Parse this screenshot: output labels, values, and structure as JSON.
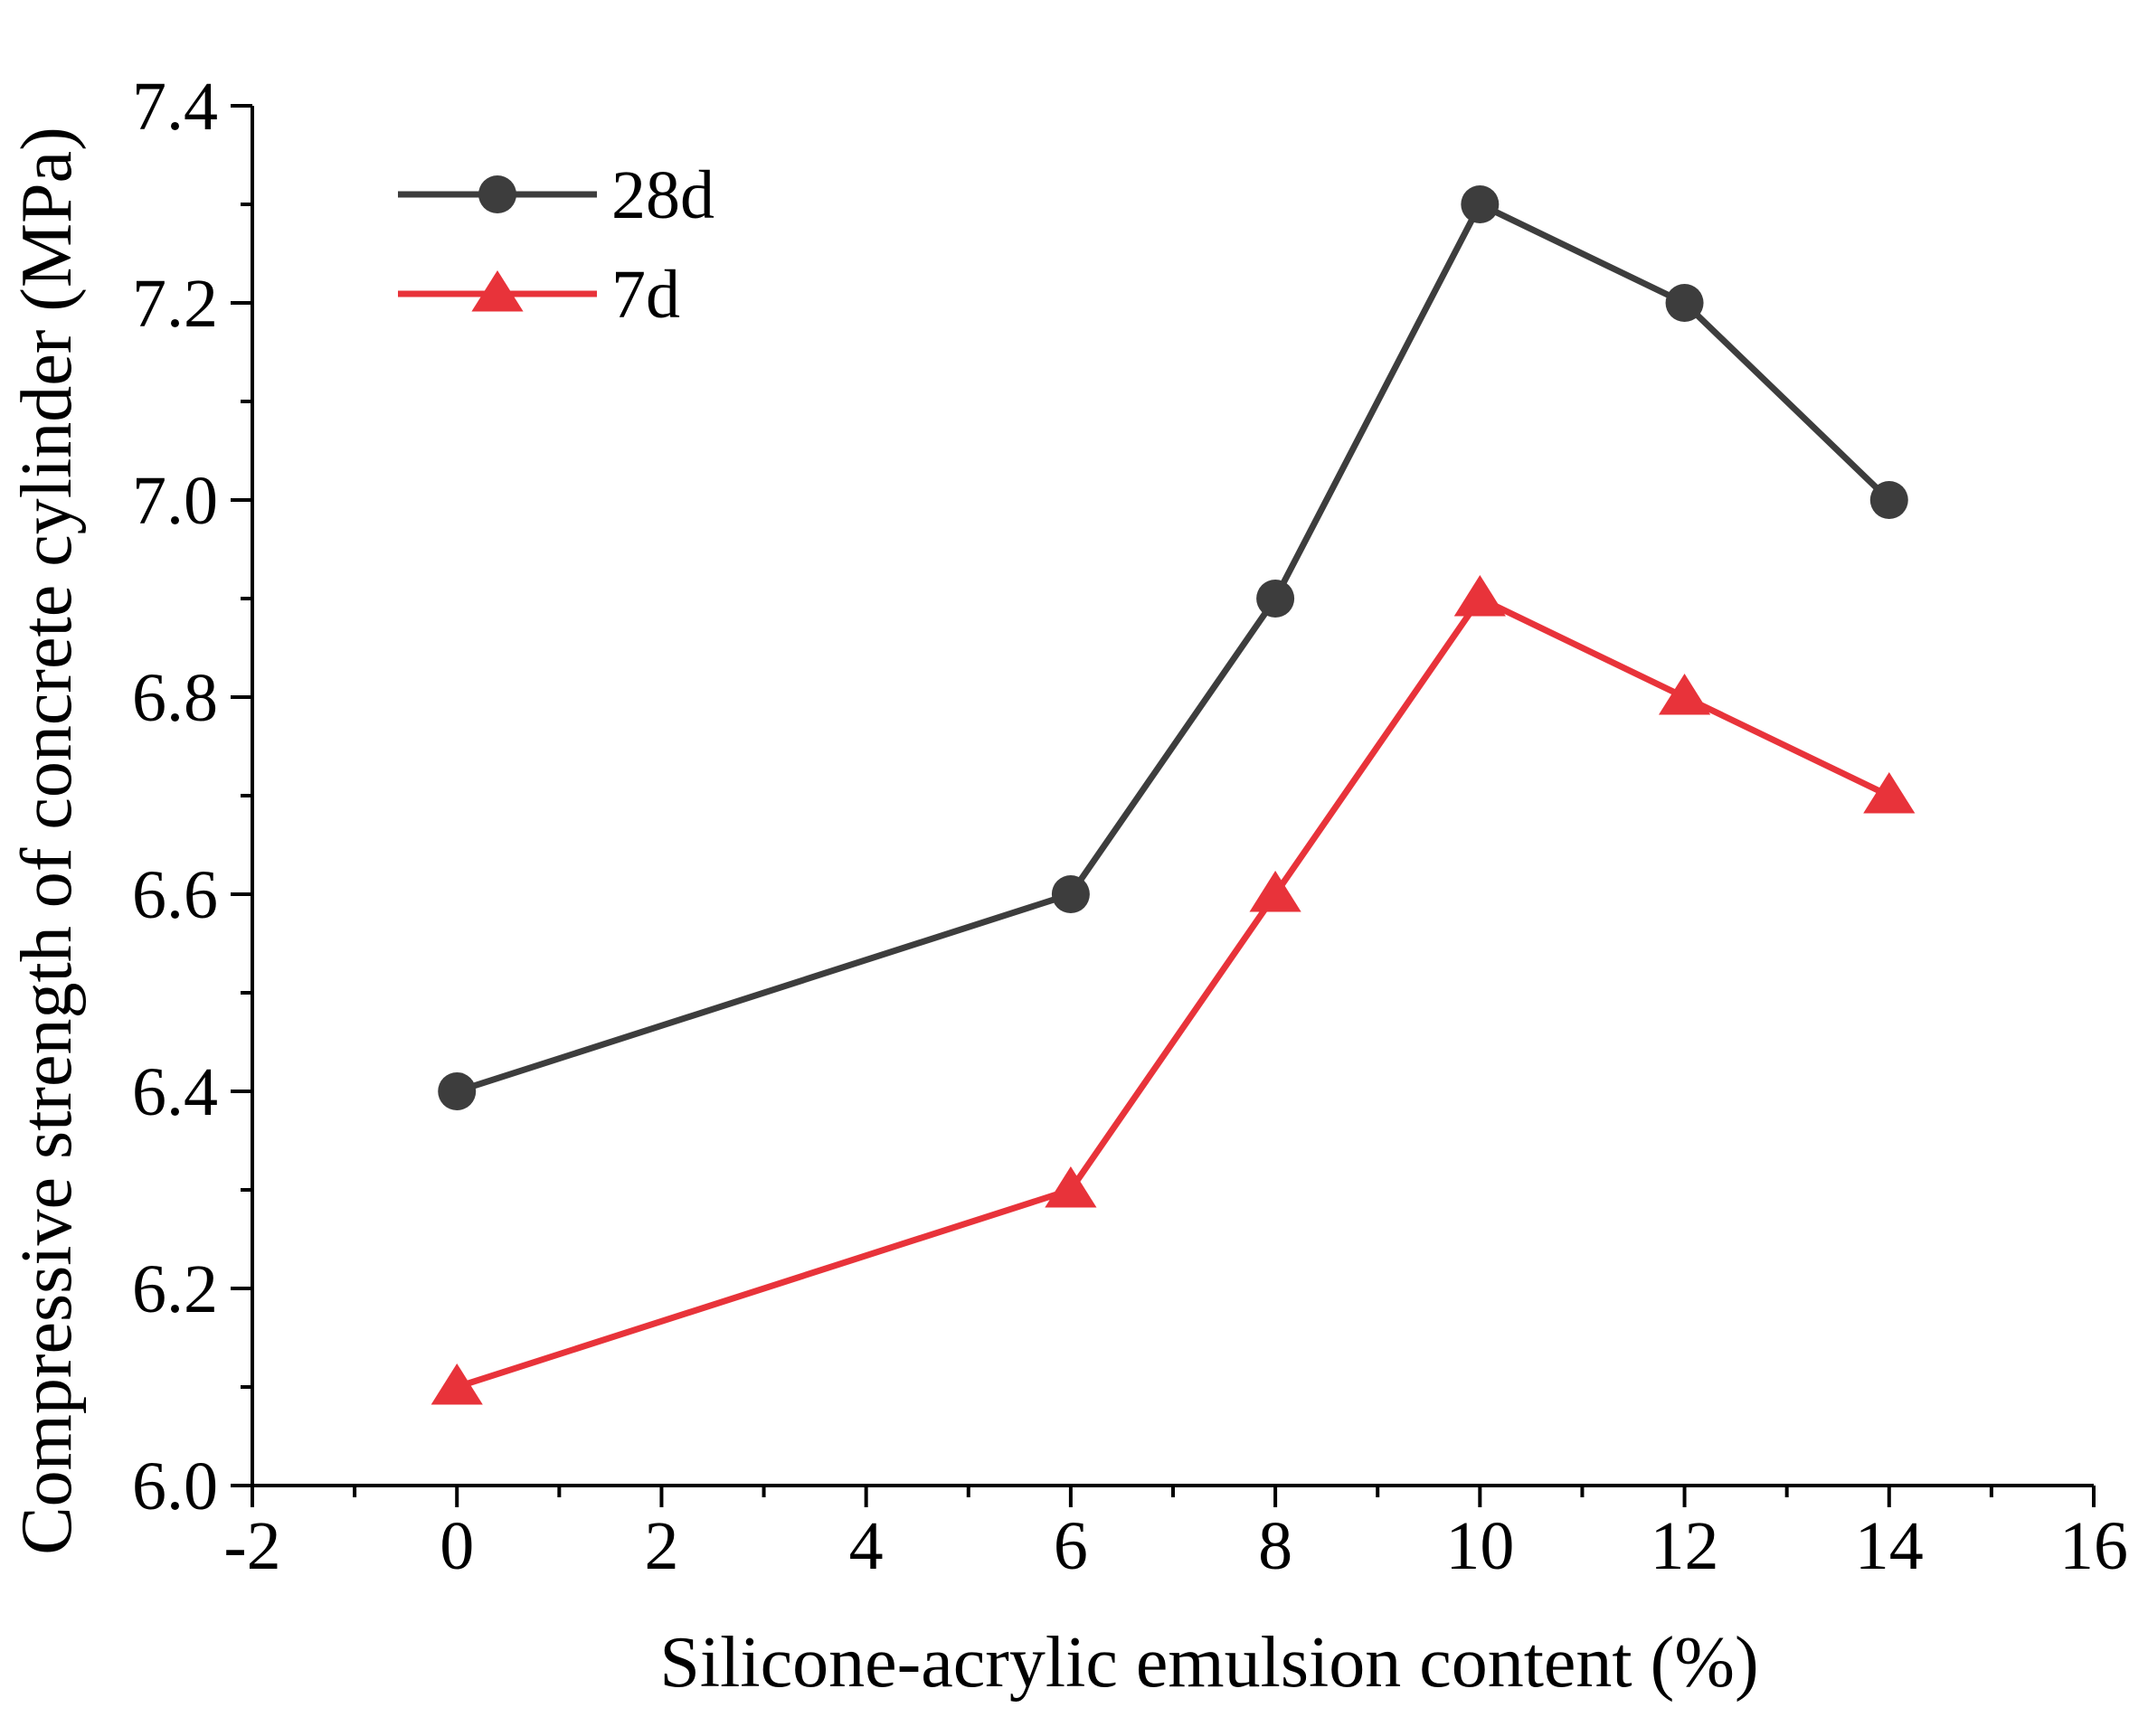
{
  "chart_data": {
    "type": "line",
    "title": "",
    "xlabel": "Silicone-acrylic emulsion content (%)",
    "ylabel": "Compressive strength of concrete cylinder (MPa)",
    "xlim": [
      -2,
      16
    ],
    "ylim": [
      6.0,
      7.4
    ],
    "x_ticks": [
      -2,
      0,
      2,
      4,
      6,
      8,
      10,
      12,
      14,
      16
    ],
    "x_tick_labels": [
      "-2",
      "0",
      "2",
      "4",
      "6",
      "8",
      "10",
      "12",
      "14",
      "16"
    ],
    "y_ticks": [
      6.0,
      6.2,
      6.4,
      6.6,
      6.8,
      7.0,
      7.2,
      7.4
    ],
    "y_tick_labels": [
      "6.0",
      "6.2",
      "6.4",
      "6.6",
      "6.8",
      "7.0",
      "7.2",
      "7.4"
    ],
    "grid": false,
    "legend_position": "top-left",
    "series": [
      {
        "name": "28d",
        "marker": "circle",
        "color": "#3d3d3d",
        "x": [
          0,
          6,
          8,
          10,
          12,
          14
        ],
        "y": [
          6.4,
          6.6,
          6.9,
          7.3,
          7.2,
          7.0
        ]
      },
      {
        "name": "7d",
        "marker": "triangle",
        "color": "#e8333a",
        "x": [
          0,
          6,
          8,
          10,
          12,
          14
        ],
        "y": [
          6.1,
          6.3,
          6.6,
          6.9,
          6.8,
          6.7
        ]
      }
    ]
  }
}
